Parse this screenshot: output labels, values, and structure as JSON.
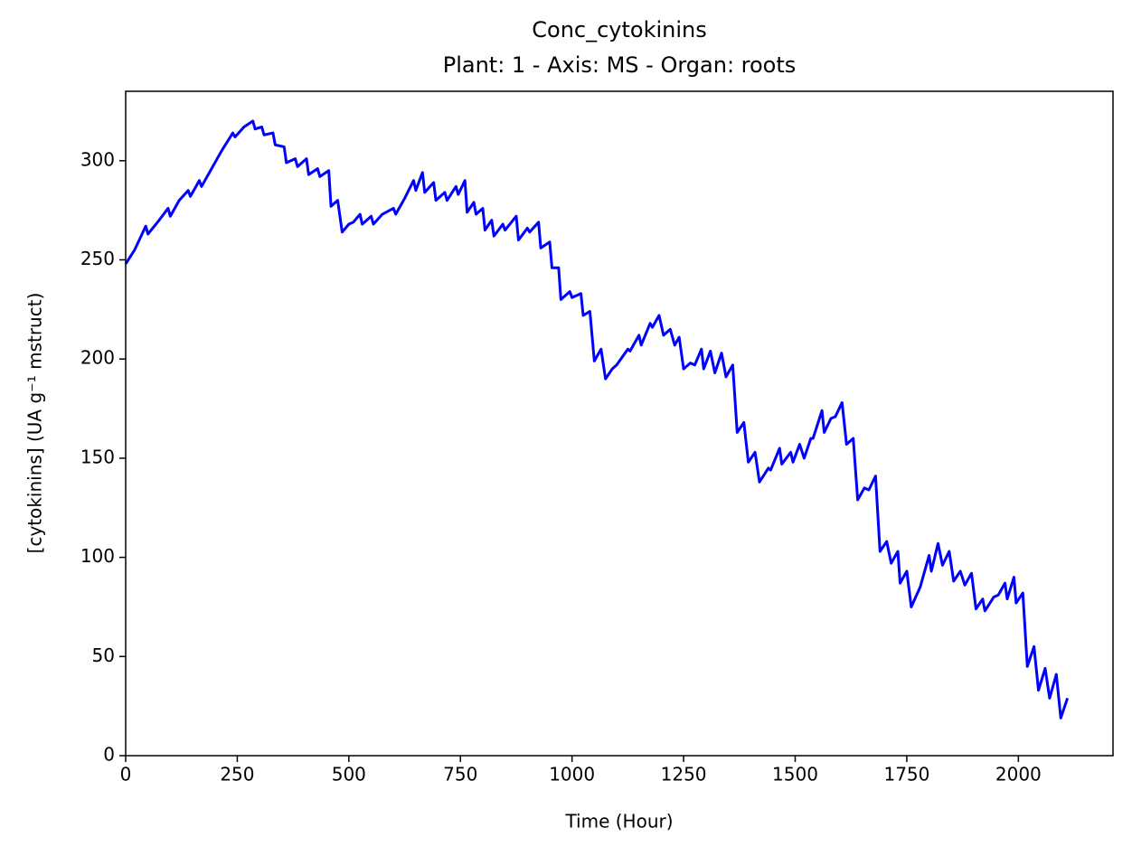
{
  "chart_data": {
    "type": "line",
    "title": "Conc_cytokinins",
    "subtitle": "Plant: 1 - Axis: MS - Organ: roots",
    "x_label": "Time (Hour)",
    "y_label": "[cytokinins] (UA g⁻¹ mstruct)",
    "xlim": [
      0,
      2212
    ],
    "ylim": [
      0,
      335
    ],
    "xticks": [
      0,
      250,
      500,
      750,
      1000,
      1250,
      1500,
      1750,
      2000
    ],
    "yticks": [
      0,
      50,
      100,
      150,
      200,
      250,
      300
    ],
    "grid": false,
    "x": [
      0,
      20,
      45,
      50,
      75,
      95,
      100,
      120,
      140,
      145,
      165,
      170,
      190,
      215,
      240,
      245,
      265,
      285,
      290,
      305,
      310,
      330,
      335,
      355,
      360,
      380,
      385,
      405,
      410,
      430,
      435,
      455,
      460,
      475,
      485,
      500,
      510,
      525,
      530,
      550,
      555,
      575,
      600,
      605,
      625,
      645,
      650,
      665,
      670,
      690,
      695,
      715,
      720,
      740,
      745,
      760,
      765,
      780,
      785,
      800,
      805,
      820,
      825,
      845,
      850,
      875,
      880,
      900,
      905,
      925,
      930,
      950,
      955,
      970,
      975,
      995,
      1000,
      1020,
      1025,
      1040,
      1050,
      1065,
      1075,
      1090,
      1100,
      1125,
      1130,
      1150,
      1155,
      1175,
      1180,
      1195,
      1205,
      1220,
      1230,
      1240,
      1250,
      1265,
      1275,
      1290,
      1295,
      1310,
      1320,
      1335,
      1345,
      1360,
      1370,
      1385,
      1395,
      1410,
      1420,
      1440,
      1445,
      1465,
      1470,
      1490,
      1495,
      1510,
      1520,
      1535,
      1540,
      1560,
      1565,
      1580,
      1590,
      1605,
      1615,
      1630,
      1640,
      1655,
      1665,
      1680,
      1690,
      1705,
      1715,
      1730,
      1735,
      1750,
      1760,
      1780,
      1800,
      1805,
      1820,
      1830,
      1845,
      1855,
      1870,
      1880,
      1895,
      1905,
      1920,
      1925,
      1945,
      1955,
      1970,
      1975,
      1990,
      1995,
      2010,
      2020,
      2035,
      2045,
      2060,
      2070,
      2085,
      2095,
      2110
    ],
    "series": [
      {
        "name": "Conc_cytokinins",
        "color": "#0000ff",
        "values": [
          248,
          255,
          267,
          263,
          270,
          276,
          272,
          280,
          285,
          282,
          290,
          287,
          295,
          305,
          314,
          312,
          317,
          320,
          316,
          317,
          313,
          314,
          308,
          307,
          299,
          301,
          297,
          301,
          293,
          296,
          292,
          295,
          277,
          280,
          264,
          268,
          269,
          273,
          268,
          272,
          268,
          273,
          276,
          273,
          281,
          290,
          285,
          294,
          284,
          289,
          280,
          284,
          280,
          287,
          283,
          290,
          274,
          279,
          273,
          276,
          265,
          270,
          262,
          268,
          265,
          272,
          260,
          266,
          264,
          269,
          256,
          259,
          246,
          246,
          230,
          234,
          231,
          233,
          222,
          224,
          199,
          205,
          190,
          195,
          197,
          205,
          204,
          212,
          207,
          218,
          216,
          222,
          212,
          215,
          207,
          211,
          195,
          198,
          197,
          205,
          195,
          204,
          193,
          203,
          191,
          197,
          163,
          168,
          148,
          153,
          138,
          145,
          144,
          155,
          147,
          153,
          148,
          157,
          150,
          160,
          160,
          174,
          163,
          170,
          171,
          178,
          157,
          160,
          129,
          135,
          134,
          141,
          103,
          108,
          97,
          103,
          87,
          93,
          75,
          85,
          101,
          93,
          107,
          96,
          103,
          88,
          93,
          86,
          92,
          74,
          79,
          73,
          80,
          81,
          87,
          79,
          90,
          77,
          82,
          45,
          55,
          33,
          44,
          29,
          41,
          19,
          29
        ]
      }
    ]
  }
}
